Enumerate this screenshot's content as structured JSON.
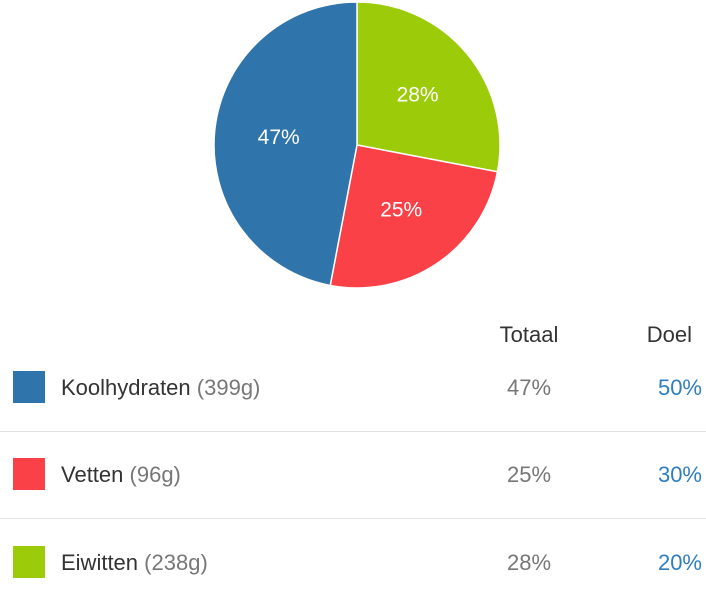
{
  "chart_data": {
    "type": "pie",
    "slices": [
      {
        "name": "Eiwitten",
        "value": 28,
        "label": "28%",
        "color": "#9ccc09"
      },
      {
        "name": "Vetten",
        "value": 25,
        "label": "25%",
        "color": "#fa4148"
      },
      {
        "name": "Koolhydraten",
        "value": 47,
        "label": "47%",
        "color": "#2f74aa"
      }
    ]
  },
  "table": {
    "headers": {
      "total": "Totaal",
      "goal": "Doel"
    },
    "rows": [
      {
        "name": "Koolhydraten",
        "grams": "(399g)",
        "total": "47%",
        "goal": "50%",
        "color": "#2f74aa"
      },
      {
        "name": "Vetten",
        "grams": "(96g)",
        "total": "25%",
        "goal": "30%",
        "color": "#fa4148"
      },
      {
        "name": "Eiwitten",
        "grams": "(238g)",
        "total": "28%",
        "goal": "20%",
        "color": "#9ccc09"
      }
    ]
  }
}
